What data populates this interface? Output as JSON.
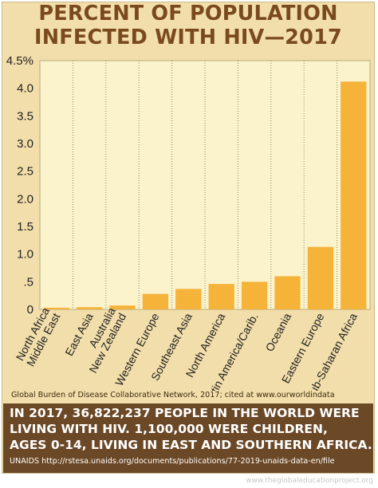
{
  "title_lines": [
    "PERCENT OF POPULATION",
    "INFECTED WITH HIV—2017"
  ],
  "source_note": "Global Burden of Disease Collaborative Network, 2017; cited at www.ourworldindata",
  "info": {
    "lines": [
      "IN 2017, 36,822,237 PEOPLE IN THE WORLD WERE",
      "LIVING WITH HIV. 1,100,000 WERE CHILDREN,",
      "AGES 0-14, LIVING IN EAST AND SOUTHERN AFRICA."
    ],
    "citation": "UNAIDS http://rstesa.unaids.org/documents/publications/77-2019-unaids-data-en/file"
  },
  "watermark": "www.theglobaleducationproject.org",
  "colors": {
    "background": "#f2deaa",
    "plot_area": "#fbf3cb",
    "bar": "#f6b33a",
    "title": "#7a4a1e",
    "info_box": "#6b4826",
    "grid": "#8a8a7a"
  },
  "chart_data": {
    "type": "bar",
    "title": "PERCENT OF POPULATION INFECTED WITH HIV—2017",
    "categories": [
      [
        "North Africa",
        "Middle East"
      ],
      [
        "East Asia"
      ],
      [
        "Australia",
        "New Zealand"
      ],
      [
        "Western Europe"
      ],
      [
        "Southeast Asia"
      ],
      [
        "North America"
      ],
      [
        "Latin America/Carib."
      ],
      [
        "Oceania"
      ],
      [
        "Eastern Europe"
      ],
      [
        "Sub-Saharan Africa"
      ]
    ],
    "values": [
      0.03,
      0.04,
      0.07,
      0.28,
      0.37,
      0.46,
      0.5,
      0.6,
      1.13,
      4.12
    ],
    "ylim": [
      0,
      4.5
    ],
    "yticks": [
      0,
      0.5,
      1.0,
      1.5,
      2.0,
      2.5,
      3.0,
      3.5,
      4.0,
      4.5
    ],
    "ytick_labels": [
      "0",
      ".5",
      "1.0",
      "1.5",
      "2.0",
      "2.5",
      "3.0",
      "3.5",
      "4.0",
      "4.5%"
    ],
    "grid": "vertical dotted separators between categories",
    "xlabel": "",
    "ylabel": ""
  }
}
